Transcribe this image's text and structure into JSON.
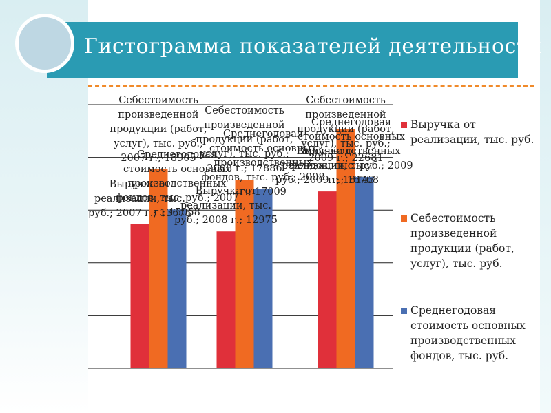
{
  "slide": {
    "title": "Гистограмма показателей деятельности"
  },
  "colors": {
    "title_bar": "#2a9bb3",
    "series_revenue": "#e0303a",
    "series_cost": "#f06a22",
    "series_assets": "#4a6fb2"
  },
  "chart_data": {
    "type": "bar",
    "title": "",
    "xlabel": "",
    "ylabel": "",
    "ylim": [
      0,
      25000
    ],
    "grid": true,
    "legend_position": "right",
    "categories": [
      "2007 г.",
      "2008 г.",
      "2009 г."
    ],
    "series": [
      {
        "name": "Выручка от реализации, тыс. руб.",
        "values": [
          13673,
          12975,
          16768
        ]
      },
      {
        "name": "Себестоимость произведенной продукции (работ, услуг), тыс. руб.",
        "values": [
          18905,
          17886,
          22681
        ]
      },
      {
        "name": "Среднегодовая стоимость основных производственных фондов, тыс. руб.",
        "values": [
          15058,
          17009,
          18143
        ]
      }
    ],
    "data_labels": [
      {
        "series": 0,
        "category": 0,
        "text": "Выручка от реализации, тыс. руб.; 2007 г.; 13673"
      },
      {
        "series": 0,
        "category": 1,
        "text": "Выручка от реализации, тыс. руб.; 2008 г.; 12975"
      },
      {
        "series": 0,
        "category": 2,
        "text": "Выручка от реализации, тыс. руб.; 2009 г.; 16768"
      },
      {
        "series": 1,
        "category": 0,
        "text": "Себестоимость произведенной продукции (работ, услуг), тыс. руб.; 2007 г.; 18905"
      },
      {
        "series": 1,
        "category": 1,
        "text": "Себестоимость произведенной продукции (работ, услуг), тыс. руб.; 2008 г.; 17886"
      },
      {
        "series": 1,
        "category": 2,
        "text": "Себестоимость произведенной продукции (работ, услуг), тыс. руб.; 2009 г.; 22681"
      },
      {
        "series": 2,
        "category": 0,
        "text": "Среднегодовая стоимость основных производственных фондов, тыс. руб.; 2007 г.; 15058"
      },
      {
        "series": 2,
        "category": 1,
        "text": "Среднегодовая стоимость основных производственных фондов, тыс. руб.; 2008 г.; 17009"
      },
      {
        "series": 2,
        "category": 2,
        "text": "Среднегодовая стоимость основных производственных фондов, тыс. руб.; 2009 г.; 18143"
      }
    ],
    "legend": [
      "Выручка от реализации, тыс. руб.",
      "Себестоимость произведенной продукции (работ, услуг), тыс. руб.",
      "Среднегодовая стоимость основных производственных фондов, тыс. руб."
    ]
  }
}
